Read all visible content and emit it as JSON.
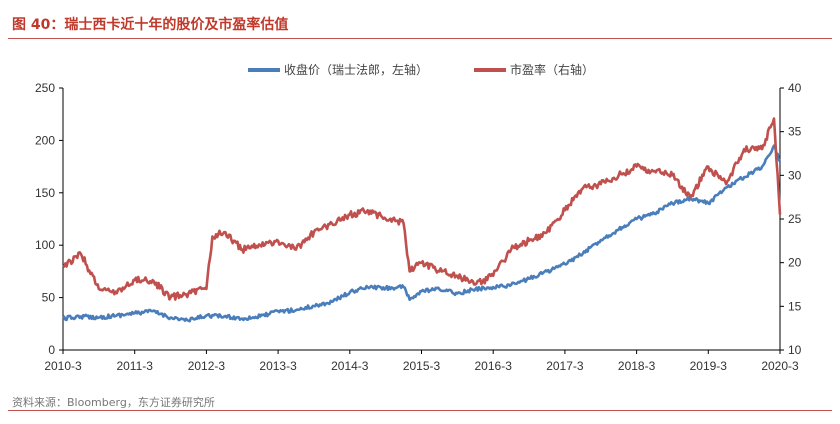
{
  "figure": {
    "title": "图 40：瑞士西卡近十年的股价及市盈率估值",
    "source": "资料来源：Bloomberg，东方证券研究所"
  },
  "colors": {
    "accent": "#c0392b",
    "price": "#4a7ebb",
    "pe": "#c0504d",
    "axis": "#000000"
  },
  "chart_data": {
    "type": "line",
    "title": "",
    "legend_position": "top",
    "grid": false,
    "x_ticks": [
      "2010-3",
      "2011-3",
      "2012-3",
      "2013-3",
      "2014-3",
      "2015-3",
      "2016-3",
      "2017-3",
      "2018-3",
      "2019-3",
      "2020-3"
    ],
    "y_left": {
      "lim": [
        0,
        250
      ],
      "ticks": [
        "0",
        "50",
        "100",
        "150",
        "200",
        "250"
      ]
    },
    "y_right": {
      "lim": [
        10,
        40
      ],
      "ticks": [
        "10",
        "15",
        "20",
        "25",
        "30",
        "35",
        "40"
      ]
    },
    "series": [
      {
        "name": "收盘价（瑞士法郎，左轴）",
        "axis": "left",
        "x": [
          "2010-03",
          "2010-06",
          "2010-09",
          "2010-12",
          "2011-03",
          "2011-06",
          "2011-09",
          "2011-12",
          "2012-03",
          "2012-06",
          "2012-09",
          "2012-12",
          "2013-03",
          "2013-06",
          "2013-09",
          "2013-12",
          "2014-03",
          "2014-06",
          "2014-09",
          "2014-12",
          "2015-01",
          "2015-03",
          "2015-06",
          "2015-09",
          "2015-12",
          "2016-03",
          "2016-06",
          "2016-09",
          "2016-12",
          "2017-03",
          "2017-06",
          "2017-09",
          "2017-12",
          "2018-03",
          "2018-06",
          "2018-09",
          "2018-12",
          "2019-03",
          "2019-06",
          "2019-09",
          "2019-12",
          "2020-02",
          "2020-03"
        ],
        "values": [
          30,
          32,
          31,
          33,
          35,
          37,
          31,
          28,
          33,
          32,
          30,
          32,
          37,
          38,
          42,
          46,
          55,
          60,
          59,
          60,
          48,
          56,
          58,
          54,
          58,
          60,
          62,
          68,
          75,
          82,
          92,
          105,
          115,
          125,
          130,
          140,
          145,
          140,
          155,
          165,
          175,
          195,
          180
        ]
      },
      {
        "name": "市盈率（右轴）",
        "axis": "right",
        "x": [
          "2010-03",
          "2010-06",
          "2010-09",
          "2010-12",
          "2011-03",
          "2011-06",
          "2011-09",
          "2011-12",
          "2012-03",
          "2012-04",
          "2012-06",
          "2012-09",
          "2012-12",
          "2013-03",
          "2013-06",
          "2013-09",
          "2013-12",
          "2014-03",
          "2014-06",
          "2014-09",
          "2014-12",
          "2015-01",
          "2015-03",
          "2015-06",
          "2015-09",
          "2015-12",
          "2016-03",
          "2016-06",
          "2016-09",
          "2016-12",
          "2017-03",
          "2017-06",
          "2017-09",
          "2017-12",
          "2018-03",
          "2018-06",
          "2018-09",
          "2018-12",
          "2019-03",
          "2019-06",
          "2019-09",
          "2019-12",
          "2020-02",
          "2020-03"
        ],
        "values": [
          19.5,
          21,
          17,
          16.5,
          18,
          18,
          16,
          16.5,
          17,
          23,
          23.5,
          21.5,
          22,
          22.5,
          21.5,
          23.5,
          24.5,
          25.5,
          26,
          25,
          24.5,
          19,
          20,
          19,
          18.5,
          17.5,
          18.5,
          21.5,
          22.5,
          23.5,
          26,
          28.5,
          29,
          30,
          31,
          30.5,
          30,
          27.5,
          31,
          29,
          33,
          33,
          36.5,
          25.5
        ]
      }
    ]
  }
}
